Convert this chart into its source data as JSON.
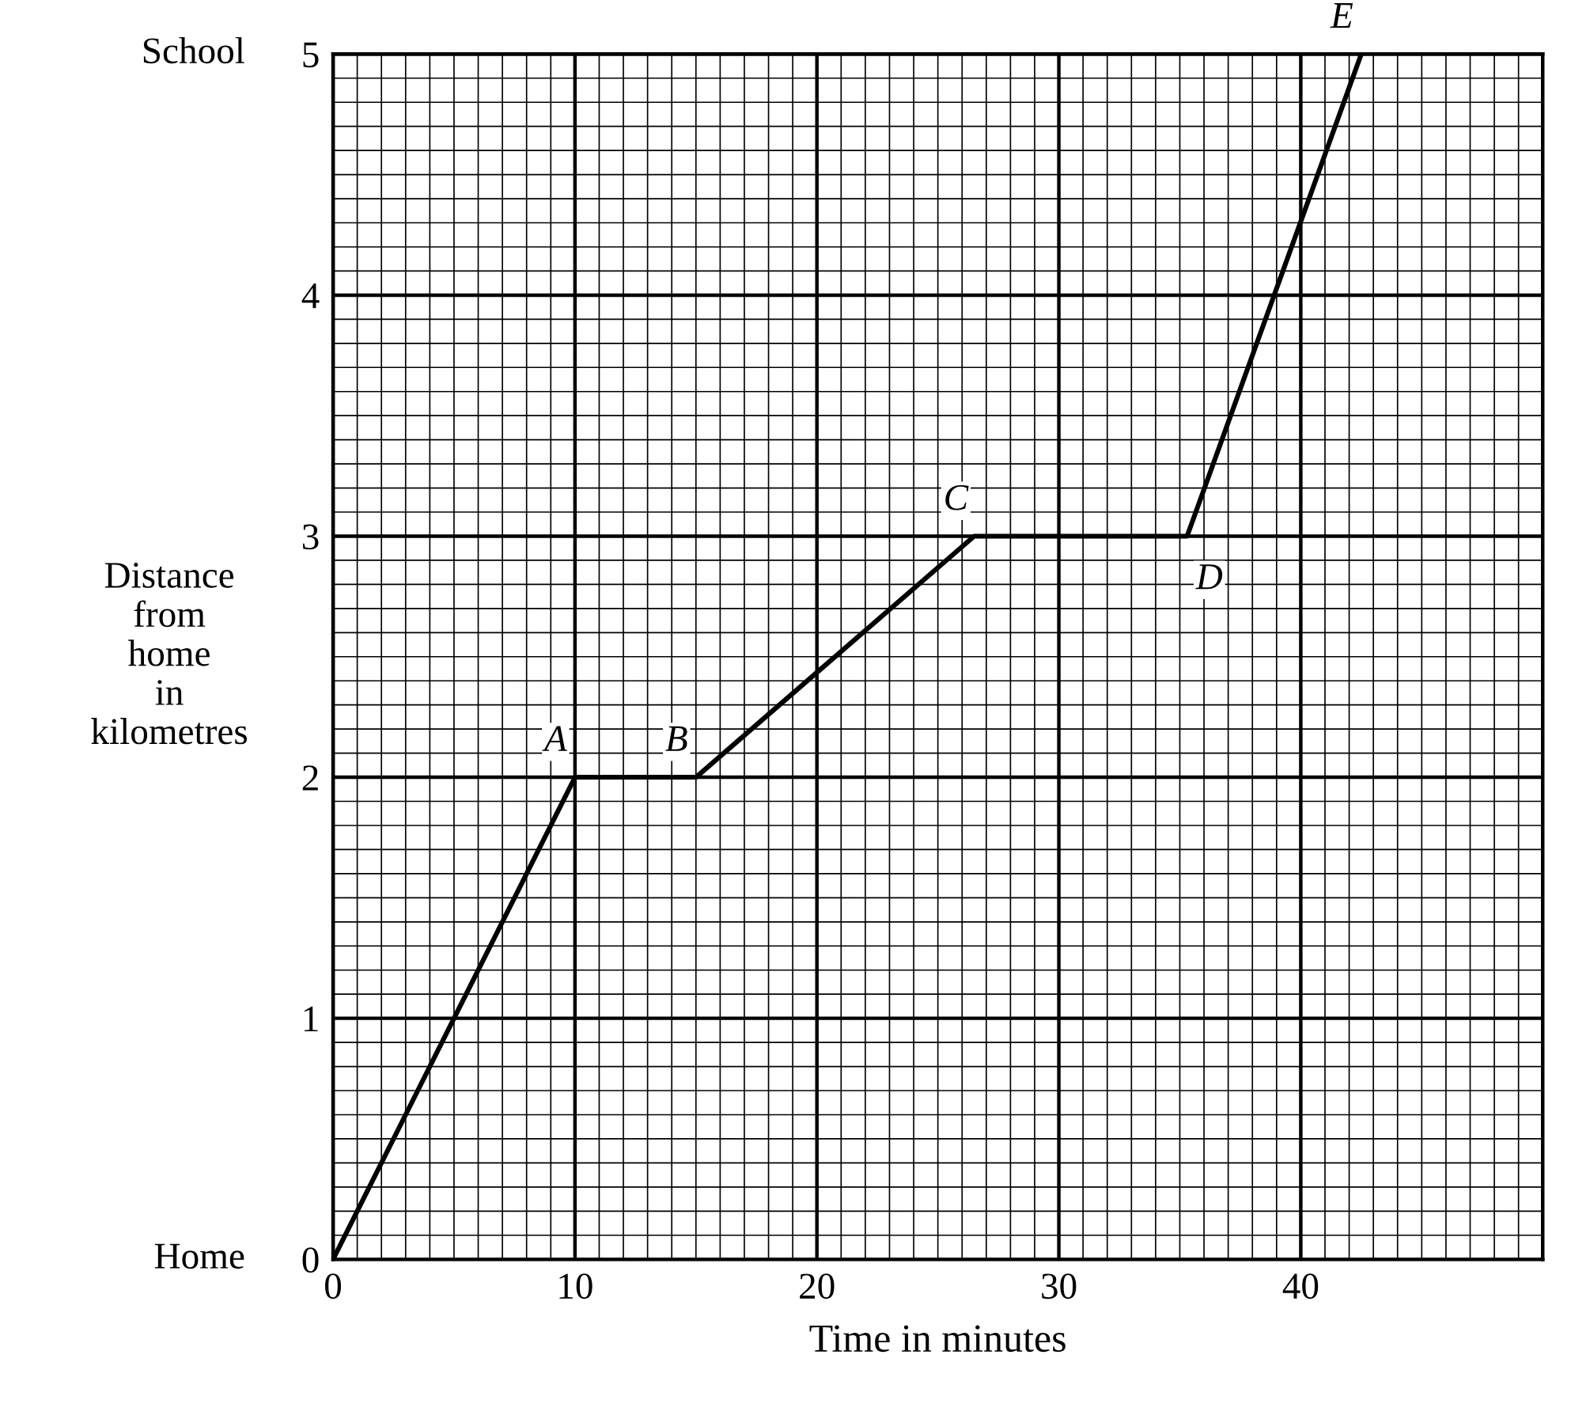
{
  "chart_data": {
    "type": "line",
    "xlabel": "Time in minutes",
    "ylabel": "Distance\nfrom\nhome\nin\nkilometres",
    "x": [
      0,
      10,
      15,
      26.5,
      35.3,
      42.5
    ],
    "series": [
      {
        "color": "#000000",
        "values": [
          0,
          2,
          2,
          3,
          3,
          5
        ]
      }
    ],
    "xlim": [
      0,
      50
    ],
    "ylim": [
      0,
      5
    ],
    "xticks": [
      0,
      10,
      20,
      30,
      40,
      {
        "value": 50,
        "label": null
      }
    ],
    "yticks": [
      0,
      1,
      2,
      3,
      4,
      5
    ],
    "grid": true,
    "marker": "none",
    "line_style": "solid",
    "annotations": [
      {
        "text": "A",
        "x": 10,
        "y": 2
      },
      {
        "text": "B",
        "x": 15,
        "y": 2
      },
      {
        "text": "C",
        "x": 26.5,
        "y": 3
      },
      {
        "text": "D",
        "x": 35.3,
        "y": 3
      },
      {
        "text": "E",
        "x": 42.5,
        "y": 5
      },
      "Home",
      "School"
    ]
  }
}
